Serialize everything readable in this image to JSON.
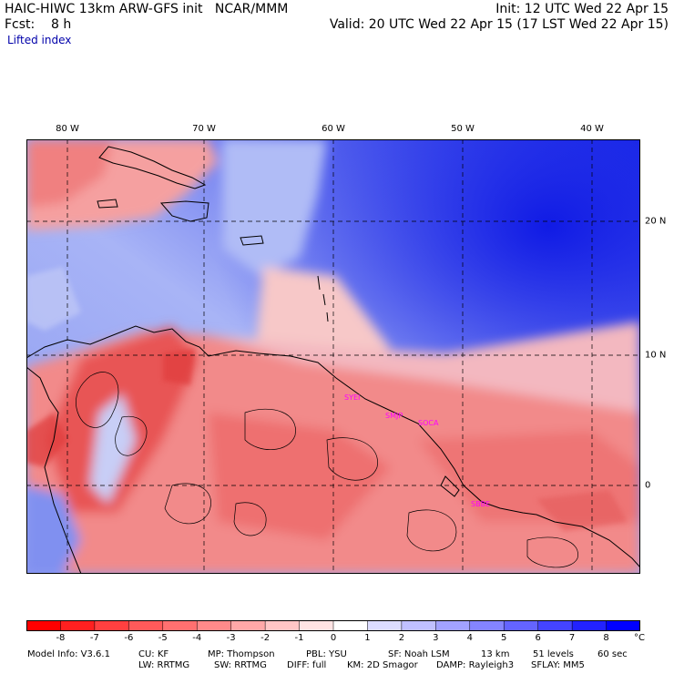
{
  "header": {
    "line1_left": "HAIC-HIWC 13km ARW-GFS init   NCAR/MMM",
    "line1_right": "Init: 12 UTC Wed 22 Apr 15",
    "line2_left": "Fcst:    8 h",
    "line2_right": "Valid: 20 UTC Wed 22 Apr 15 (17 LST Wed 22 Apr 15)",
    "field": "Lifted index"
  },
  "map": {
    "lon_labels": [
      "80 W",
      "70 W",
      "60 W",
      "50 W",
      "40 W"
    ],
    "lat_labels": [
      "20 N",
      "10 N",
      "0"
    ],
    "stations": [
      "SYEI",
      "SMJP",
      "SOCA",
      "SBBE"
    ],
    "colors": {
      "deep_blue": "#0000e6",
      "mid_blue": "#5060f0",
      "light_blue": "#b4bff7",
      "pale_pink": "#f7d0d0",
      "mid_red": "#f07878",
      "strong_red": "#e03838",
      "coast": "#000000",
      "station": "#ff00ff"
    }
  },
  "colorbar": {
    "labels": [
      "-8",
      "-7",
      "-6",
      "-5",
      "-4",
      "-3",
      "-2",
      "-1",
      "0",
      "1",
      "2",
      "3",
      "4",
      "5",
      "6",
      "7",
      "8"
    ],
    "unit": "°C",
    "colors": [
      "#ff0000",
      "#ff2020",
      "#ff4040",
      "#ff5a5a",
      "#ff7070",
      "#ff8a8a",
      "#ffa8a8",
      "#ffc6c6",
      "#ffe4e4",
      "#ffffff",
      "#dcdcff",
      "#c0c0ff",
      "#a2a2ff",
      "#8484ff",
      "#6464ff",
      "#4444ff",
      "#2222ff",
      "#0000ff"
    ]
  },
  "footer": {
    "line1": [
      "Model Info: V3.6.1",
      "CU: KF",
      "MP: Thompson",
      "PBL: YSU",
      "SF: Noah LSM",
      "13 km",
      "51 levels",
      "60 sec"
    ],
    "line2": [
      "LW: RRTMG",
      "SW: RRTMG",
      "DIFF: full",
      "KM: 2D Smagor",
      "DAMP: Rayleigh3",
      "SFLAY: MM5"
    ]
  }
}
